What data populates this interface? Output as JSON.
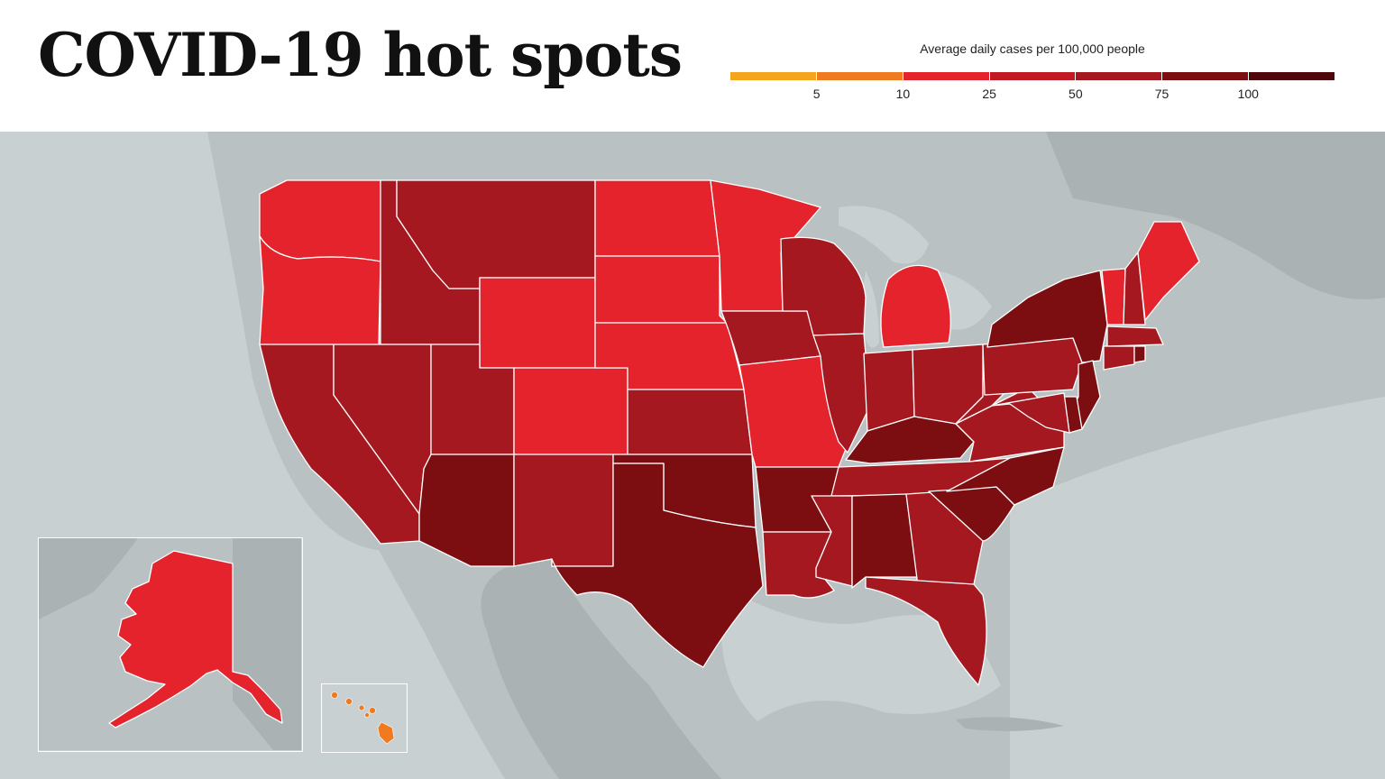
{
  "title": "COVID-19 hot spots",
  "legend": {
    "title": "Average daily cases per 100,000 people",
    "segments": [
      {
        "color": "#f4a51b"
      },
      {
        "color": "#f07a1f"
      },
      {
        "color": "#e4232d"
      },
      {
        "color": "#c11a25"
      },
      {
        "color": "#a51820"
      },
      {
        "color": "#7c0e12"
      },
      {
        "color": "#4e080b"
      }
    ],
    "ticks": [
      "5",
      "10",
      "25",
      "50",
      "75",
      "100"
    ]
  },
  "colors": {
    "background_land": "#b9c1c2",
    "foreign_land": "#a6aeaf",
    "water": "#c8d0d1",
    "state_border": "#ffffff"
  },
  "states": [
    {
      "id": "WA",
      "color": "#e4232d"
    },
    {
      "id": "OR",
      "color": "#e4232d"
    },
    {
      "id": "CA",
      "color": "#a51820"
    },
    {
      "id": "ID",
      "color": "#a51820"
    },
    {
      "id": "NV",
      "color": "#a51820"
    },
    {
      "id": "MT",
      "color": "#a51820"
    },
    {
      "id": "WY",
      "color": "#e4232d"
    },
    {
      "id": "UT",
      "color": "#a51820"
    },
    {
      "id": "AZ",
      "color": "#7c0e12"
    },
    {
      "id": "CO",
      "color": "#e4232d"
    },
    {
      "id": "NM",
      "color": "#a51820"
    },
    {
      "id": "ND",
      "color": "#e4232d"
    },
    {
      "id": "SD",
      "color": "#e4232d"
    },
    {
      "id": "NE",
      "color": "#e4232d"
    },
    {
      "id": "KS",
      "color": "#a51820"
    },
    {
      "id": "OK",
      "color": "#7c0e12"
    },
    {
      "id": "TX",
      "color": "#7c0e12"
    },
    {
      "id": "MN",
      "color": "#e4232d"
    },
    {
      "id": "IA",
      "color": "#a51820"
    },
    {
      "id": "MO",
      "color": "#e4232d"
    },
    {
      "id": "AR",
      "color": "#7c0e12"
    },
    {
      "id": "LA",
      "color": "#a51820"
    },
    {
      "id": "WI",
      "color": "#a51820"
    },
    {
      "id": "IL",
      "color": "#a51820"
    },
    {
      "id": "MI",
      "color": "#e4232d"
    },
    {
      "id": "IN",
      "color": "#a51820"
    },
    {
      "id": "OH",
      "color": "#a51820"
    },
    {
      "id": "KY",
      "color": "#7c0e12"
    },
    {
      "id": "TN",
      "color": "#a51820"
    },
    {
      "id": "MS",
      "color": "#a51820"
    },
    {
      "id": "AL",
      "color": "#7c0e12"
    },
    {
      "id": "GA",
      "color": "#a51820"
    },
    {
      "id": "FL",
      "color": "#a51820"
    },
    {
      "id": "SC",
      "color": "#7c0e12"
    },
    {
      "id": "NC",
      "color": "#7c0e12"
    },
    {
      "id": "VA",
      "color": "#a51820"
    },
    {
      "id": "WV",
      "color": "#a51820"
    },
    {
      "id": "PA",
      "color": "#a51820"
    },
    {
      "id": "NY",
      "color": "#7c0e12"
    },
    {
      "id": "VT",
      "color": "#e4232d"
    },
    {
      "id": "NH",
      "color": "#a51820"
    },
    {
      "id": "ME",
      "color": "#e4232d"
    },
    {
      "id": "MA",
      "color": "#a51820"
    },
    {
      "id": "CT",
      "color": "#a51820"
    },
    {
      "id": "RI",
      "color": "#7c0e12"
    },
    {
      "id": "NJ",
      "color": "#7c0e12"
    },
    {
      "id": "DE",
      "color": "#7c0e12"
    },
    {
      "id": "MD",
      "color": "#a51820"
    },
    {
      "id": "AK",
      "color": "#e4232d"
    },
    {
      "id": "HI",
      "color": "#f07a1f"
    }
  ]
}
